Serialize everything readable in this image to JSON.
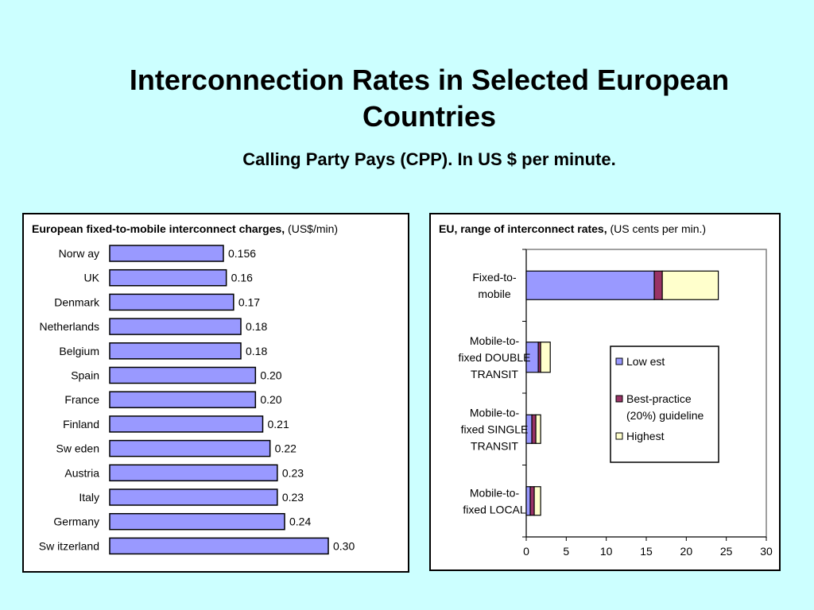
{
  "slide": {
    "title_line1": "Interconnection Rates in Selected European",
    "title_line2": "Countries",
    "subtitle": "Calling Party Pays (CPP). In US $ per minute."
  },
  "chart_data": [
    {
      "type": "bar",
      "orientation": "horizontal",
      "title_bold": "European fixed-to-mobile interconnect charges,",
      "title_unit": " (US$/min)",
      "categories": [
        "Norw ay",
        "UK",
        "Denmark",
        "Netherlands",
        "Belgium",
        "Spain",
        "France",
        "Finland",
        "Sw eden",
        "Austria",
        "Italy",
        "Germany",
        "Sw itzerland"
      ],
      "values": [
        0.156,
        0.16,
        0.17,
        0.18,
        0.18,
        0.2,
        0.2,
        0.21,
        0.22,
        0.23,
        0.23,
        0.24,
        0.3
      ],
      "value_labels": [
        "0.156",
        "0.16",
        "0.17",
        "0.18",
        "0.18",
        "0.20",
        "0.20",
        "0.21",
        "0.22",
        "0.23",
        "0.23",
        "0.24",
        "0.30"
      ],
      "xlim": [
        0,
        0.3
      ],
      "grid": false,
      "colors": {
        "bar": "#9999ff",
        "edge": "#000000"
      }
    },
    {
      "type": "bar",
      "orientation": "horizontal",
      "stacked": true,
      "title_bold": "EU, range of interconnect rates,",
      "title_unit": " (US cents per min.)",
      "categories": [
        [
          "Fixed-to-",
          "mobile"
        ],
        [
          "Mobile-to-",
          "fixed DOUBLE",
          "TRANSIT"
        ],
        [
          "Mobile-to-",
          "fixed SINGLE",
          "TRANSIT"
        ],
        [
          "Mobile-to-",
          "fixed LOCAL"
        ]
      ],
      "series": [
        {
          "name": "Low est",
          "values": [
            16,
            1.5,
            0.7,
            0.5
          ],
          "color": "#9999ff"
        },
        {
          "name": "Best-practice (20%) guideline",
          "values": [
            1,
            0.3,
            0.5,
            0.5
          ],
          "color": "#993366"
        },
        {
          "name": "Highest",
          "values": [
            7,
            1.2,
            0.6,
            0.8
          ],
          "color": "#ffffcc"
        }
      ],
      "legend_lines": [
        [
          "Low est"
        ],
        [
          "Best-practice",
          "(20%) guideline"
        ],
        [
          "Highest"
        ]
      ],
      "xlim": [
        0,
        30
      ],
      "xticks": [
        0,
        5,
        10,
        15,
        20,
        25,
        30
      ],
      "grid": false,
      "legend": "right"
    }
  ]
}
